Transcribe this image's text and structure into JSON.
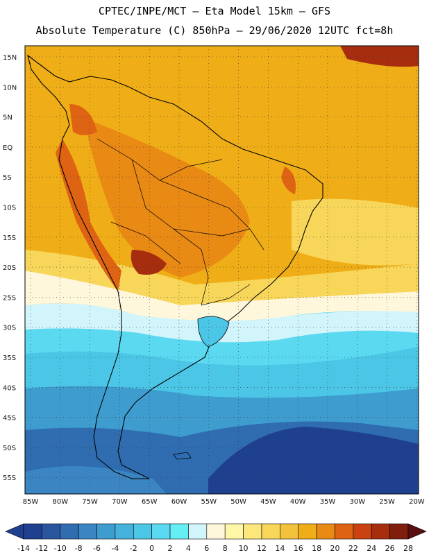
{
  "header": {
    "line1": "CPTEC/INPE/MCT –  Eta Model 15km – GFS",
    "line2": "Absolute Temperature (C) 850hPa – 29/06/2020 12UTC fct=8h"
  },
  "axes": {
    "lat_labels": [
      "15N",
      "10N",
      "5N",
      "EQ",
      "5S",
      "10S",
      "15S",
      "20S",
      "25S",
      "30S",
      "35S",
      "40S",
      "45S",
      "50S",
      "55S"
    ],
    "lon_labels": [
      "85W",
      "80W",
      "75W",
      "70W",
      "65W",
      "60W",
      "55W",
      "50W",
      "45W",
      "40W",
      "35W",
      "30W",
      "25W",
      "20W"
    ]
  },
  "colorbar": {
    "labels": [
      "-14",
      "-12",
      "-10",
      "-8",
      "-6",
      "-4",
      "-2",
      "0",
      "2",
      "4",
      "6",
      "8",
      "10",
      "12",
      "14",
      "16",
      "18",
      "20",
      "22",
      "24",
      "26",
      "28"
    ],
    "colors": [
      "#1f3f8f",
      "#2a56a0",
      "#2f6db0",
      "#3b86c2",
      "#3e9ccf",
      "#44b2dd",
      "#4cc6e6",
      "#5ad9f0",
      "#66eef5",
      "#d2f4fb",
      "#fff7dc",
      "#fff6a8",
      "#fbe77b",
      "#f8d659",
      "#f2c23d",
      "#efae17",
      "#e98a15",
      "#de6312",
      "#c94210",
      "#a62e0f",
      "#7f1e0d",
      "#5a0f10"
    ]
  },
  "map_colors": {
    "cold_deep": "#1f3f8f",
    "cold_mid": "#2f6db0",
    "cool": "#3e9ccf",
    "cyan": "#4cc6e6",
    "aqua": "#5ad9f0",
    "pale": "#d2f4fb",
    "cream": "#fff7dc",
    "yellow": "#f8d659",
    "gold": "#efae17",
    "orange": "#e98a15",
    "dark_orange": "#de6312",
    "red": "#a62e0f"
  }
}
